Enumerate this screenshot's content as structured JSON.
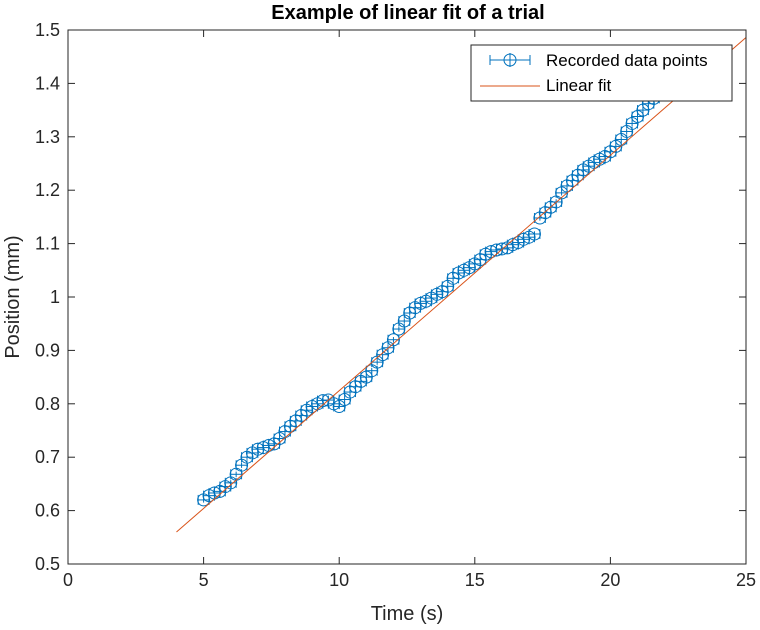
{
  "chart_data": {
    "type": "scatter",
    "title": "Example of linear fit of a trial",
    "xlabel": "Time (s)",
    "ylabel": "Position (mm)",
    "xlim": [
      0,
      25
    ],
    "ylim": [
      0.5,
      1.5
    ],
    "xticks": [
      "0",
      "5",
      "10",
      "15",
      "20",
      "25"
    ],
    "yticks": [
      "0.5",
      "0.6",
      "0.7",
      "0.8",
      "0.9",
      "1",
      "1.1",
      "1.2",
      "1.3",
      "1.4",
      "1.5"
    ],
    "grid": false,
    "legend_position": "top-right",
    "colors": {
      "points": "#0072BD",
      "fit": "#D95319"
    },
    "series": [
      {
        "name": "Recorded data points",
        "kind": "scatter-errorbar",
        "x": [
          5.0,
          5.2,
          5.4,
          5.6,
          5.8,
          6.0,
          6.2,
          6.4,
          6.6,
          6.8,
          7.0,
          7.2,
          7.4,
          7.6,
          7.8,
          8.0,
          8.2,
          8.4,
          8.6,
          8.8,
          9.0,
          9.2,
          9.4,
          9.6,
          9.8,
          10.0,
          10.2,
          10.4,
          10.6,
          10.8,
          11.0,
          11.2,
          11.4,
          11.6,
          11.8,
          12.0,
          12.2,
          12.4,
          12.6,
          12.8,
          13.0,
          13.2,
          13.4,
          13.6,
          13.8,
          14.0,
          14.2,
          14.4,
          14.6,
          14.8,
          15.0,
          15.2,
          15.4,
          15.6,
          15.8,
          16.0,
          16.2,
          16.4,
          16.6,
          16.8,
          17.0,
          17.2,
          17.4,
          17.6,
          17.8,
          18.0,
          18.2,
          18.4,
          18.6,
          18.8,
          19.0,
          19.2,
          19.4,
          19.6,
          19.8,
          20.0,
          20.2,
          20.4,
          20.6,
          20.8,
          21.0,
          21.2,
          21.4,
          21.6,
          21.8,
          22.0,
          22.2,
          22.4,
          22.6,
          22.8,
          23.0,
          23.2,
          23.4,
          23.6,
          23.8,
          24.0
        ],
        "y": [
          0.62,
          0.628,
          0.633,
          0.636,
          0.645,
          0.652,
          0.668,
          0.685,
          0.7,
          0.708,
          0.715,
          0.718,
          0.722,
          0.725,
          0.735,
          0.748,
          0.758,
          0.768,
          0.778,
          0.788,
          0.795,
          0.8,
          0.806,
          0.807,
          0.8,
          0.795,
          0.808,
          0.822,
          0.832,
          0.842,
          0.85,
          0.862,
          0.878,
          0.892,
          0.905,
          0.92,
          0.94,
          0.955,
          0.97,
          0.98,
          0.988,
          0.992,
          0.998,
          1.005,
          1.01,
          1.02,
          1.035,
          1.045,
          1.05,
          1.055,
          1.062,
          1.07,
          1.08,
          1.085,
          1.088,
          1.09,
          1.092,
          1.098,
          1.102,
          1.108,
          1.112,
          1.118,
          1.148,
          1.158,
          1.168,
          1.178,
          1.195,
          1.208,
          1.218,
          1.228,
          1.238,
          1.245,
          1.252,
          1.258,
          1.263,
          1.272,
          1.282,
          1.295,
          1.31,
          1.325,
          1.338,
          1.35,
          1.362,
          1.372,
          1.382,
          1.392,
          1.4,
          1.408,
          1.414,
          1.42,
          1.425,
          1.43,
          1.434,
          1.437,
          1.44,
          1.443
        ],
        "xerr": 0.2,
        "yerr": 0.005
      },
      {
        "name": "Linear fit",
        "kind": "line",
        "x": [
          4,
          25
        ],
        "y": [
          0.56,
          1.486
        ]
      }
    ]
  }
}
